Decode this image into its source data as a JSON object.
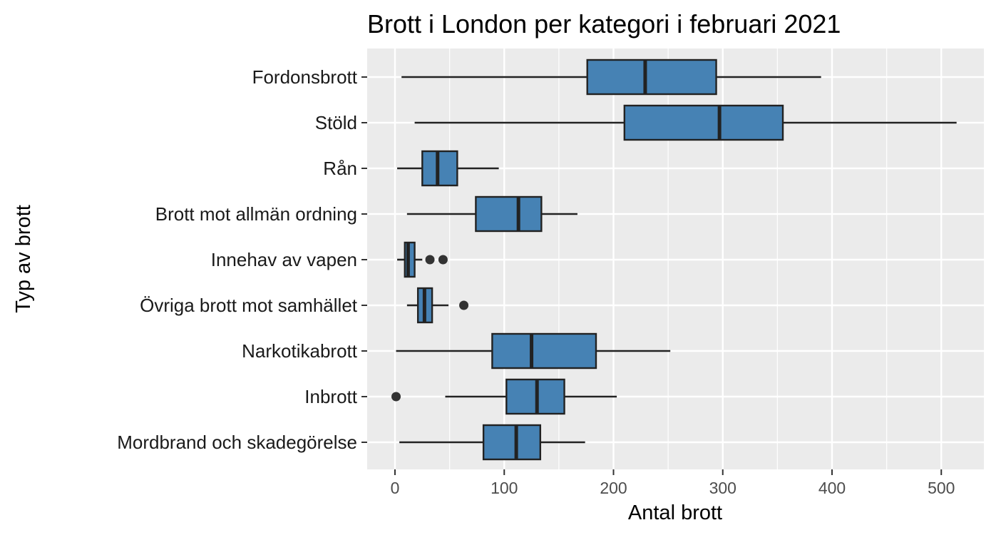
{
  "chart_data": {
    "type": "boxplot",
    "orientation": "horizontal",
    "title": "Brott i London per kategori i februari 2021",
    "xlabel": "Antal brott",
    "ylabel": "Typ av brott",
    "xlim": [
      -25,
      538
    ],
    "xticks": [
      0,
      100,
      200,
      300,
      400,
      500
    ],
    "grid": true,
    "box_color": "#4682B4",
    "outline_color": "#222222",
    "panel_color": "#EBEBEB",
    "categories": [
      {
        "label": "Fordonsbrott",
        "min": 6,
        "q1": 176,
        "median": 229,
        "q3": 294,
        "max": 390,
        "outliers": []
      },
      {
        "label": "Stöld",
        "min": 18,
        "q1": 210,
        "median": 297,
        "q3": 355,
        "max": 514,
        "outliers": []
      },
      {
        "label": "Rån",
        "min": 2,
        "q1": 25,
        "median": 39,
        "q3": 57,
        "max": 95,
        "outliers": []
      },
      {
        "label": "Brott mot allmän ordning",
        "min": 11,
        "q1": 74,
        "median": 113,
        "q3": 134,
        "max": 167,
        "outliers": []
      },
      {
        "label": "Innehav av vapen",
        "min": 2,
        "q1": 9,
        "median": 12,
        "q3": 18,
        "max": 25,
        "outliers": [
          32,
          44
        ]
      },
      {
        "label": "Övriga brott mot samhället",
        "min": 11,
        "q1": 21,
        "median": 27,
        "q3": 34,
        "max": 49,
        "outliers": [
          63
        ]
      },
      {
        "label": "Narkotikabrott",
        "min": 1,
        "q1": 89,
        "median": 125,
        "q3": 184,
        "max": 252,
        "outliers": []
      },
      {
        "label": "Inbrott",
        "min": 46,
        "q1": 102,
        "median": 130,
        "q3": 155,
        "max": 203,
        "outliers": [
          1
        ]
      },
      {
        "label": "Mordbrand och skadegörelse",
        "min": 4,
        "q1": 81,
        "median": 111,
        "q3": 133,
        "max": 174,
        "outliers": []
      }
    ]
  }
}
